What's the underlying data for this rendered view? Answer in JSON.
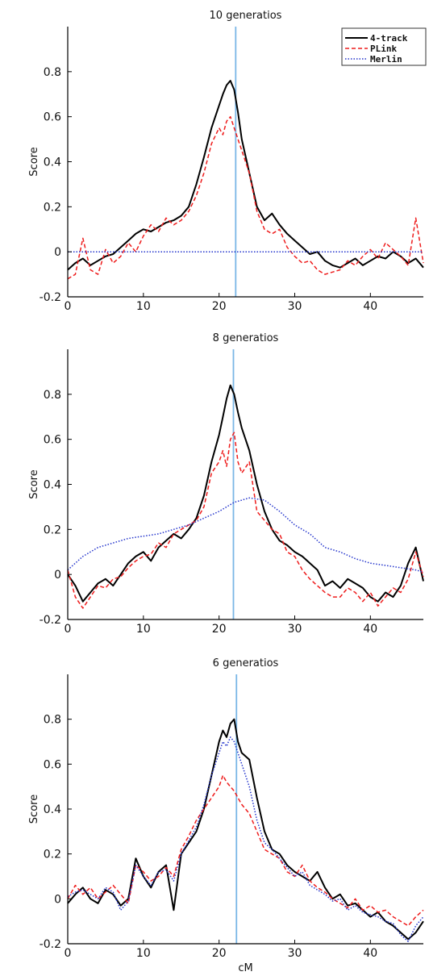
{
  "chart_data": [
    {
      "type": "line",
      "title": "10 generatios",
      "ylabel": "Score",
      "xlabel": "",
      "xlim": [
        0,
        47
      ],
      "ylim": [
        -0.2,
        1.0
      ],
      "xticks": [
        0,
        10,
        20,
        30,
        40
      ],
      "yticks": [
        -0.2,
        0,
        0.2,
        0.4,
        0.6,
        0.8
      ],
      "marker_x": 22.2,
      "legend": {
        "position": "top-right",
        "entries": [
          "4-track",
          "PLink",
          "Merlin"
        ]
      },
      "series": [
        {
          "name": "4-track",
          "color": "#000000",
          "style": "solid",
          "x": [
            0,
            1,
            2,
            3,
            4,
            5,
            6,
            7,
            8,
            9,
            10,
            11,
            12,
            13,
            14,
            15,
            16,
            17,
            18,
            19,
            20,
            20.5,
            21,
            21.5,
            22,
            22.5,
            23,
            24,
            25,
            26,
            27,
            28,
            29,
            30,
            31,
            32,
            33,
            34,
            35,
            36,
            37,
            38,
            39,
            40,
            41,
            42,
            43,
            44,
            45,
            46,
            47
          ],
          "y": [
            -0.08,
            -0.05,
            -0.03,
            -0.06,
            -0.04,
            -0.02,
            -0.01,
            0.02,
            0.05,
            0.08,
            0.1,
            0.09,
            0.11,
            0.13,
            0.14,
            0.16,
            0.2,
            0.3,
            0.42,
            0.55,
            0.65,
            0.7,
            0.74,
            0.76,
            0.72,
            0.62,
            0.5,
            0.35,
            0.2,
            0.14,
            0.17,
            0.12,
            0.08,
            0.05,
            0.02,
            -0.01,
            0.0,
            -0.04,
            -0.06,
            -0.07,
            -0.05,
            -0.03,
            -0.06,
            -0.04,
            -0.02,
            -0.03,
            0.0,
            -0.02,
            -0.05,
            -0.03,
            -0.07
          ]
        },
        {
          "name": "PLink",
          "color": "#ee1c1c",
          "style": "dashed",
          "x": [
            0,
            1,
            2,
            3,
            4,
            5,
            6,
            7,
            8,
            9,
            10,
            11,
            12,
            13,
            14,
            15,
            16,
            17,
            18,
            19,
            20,
            20.5,
            21,
            21.5,
            22,
            22.5,
            23,
            24,
            25,
            26,
            27,
            28,
            29,
            30,
            31,
            32,
            33,
            34,
            35,
            36,
            37,
            38,
            39,
            40,
            41,
            42,
            43,
            44,
            45,
            46,
            47
          ],
          "y": [
            -0.12,
            -0.1,
            0.06,
            -0.08,
            -0.1,
            0.01,
            -0.05,
            -0.02,
            0.04,
            0.0,
            0.07,
            0.12,
            0.09,
            0.15,
            0.12,
            0.14,
            0.18,
            0.25,
            0.35,
            0.48,
            0.55,
            0.52,
            0.58,
            0.6,
            0.55,
            0.5,
            0.45,
            0.35,
            0.18,
            0.1,
            0.08,
            0.1,
            0.02,
            -0.02,
            -0.05,
            -0.04,
            -0.08,
            -0.1,
            -0.09,
            -0.08,
            -0.04,
            -0.06,
            -0.02,
            0.01,
            -0.03,
            0.04,
            0.01,
            -0.02,
            -0.06,
            0.15,
            -0.05
          ]
        },
        {
          "name": "Merlin",
          "color": "#2233cc",
          "style": "dotted",
          "x": [
            0,
            2,
            5,
            9,
            12,
            17,
            20,
            25,
            30,
            35,
            40,
            44,
            47
          ],
          "y": [
            0.0,
            0.0,
            0.0,
            0.0,
            0.0,
            0.0,
            0.0,
            0.0,
            0.0,
            0.0,
            0.0,
            0.0,
            0.0
          ]
        }
      ]
    },
    {
      "type": "line",
      "title": "8 generatios",
      "ylabel": "Score",
      "xlabel": "",
      "xlim": [
        0,
        47
      ],
      "ylim": [
        -0.2,
        1.0
      ],
      "xticks": [
        0,
        10,
        20,
        30,
        40
      ],
      "yticks": [
        -0.2,
        0,
        0.2,
        0.4,
        0.6,
        0.8
      ],
      "marker_x": 21.9,
      "legend": null,
      "series": [
        {
          "name": "4-track",
          "color": "#000000",
          "style": "solid",
          "x": [
            0,
            1,
            2,
            3,
            4,
            5,
            6,
            7,
            8,
            9,
            10,
            11,
            12,
            13,
            14,
            15,
            16,
            17,
            18,
            19,
            20,
            20.5,
            21,
            21.5,
            22,
            22.5,
            23,
            24,
            25,
            26,
            27,
            28,
            29,
            30,
            31,
            32,
            33,
            34,
            35,
            36,
            37,
            38,
            39,
            40,
            41,
            42,
            43,
            44,
            45,
            46,
            47
          ],
          "y": [
            0.0,
            -0.05,
            -0.12,
            -0.08,
            -0.04,
            -0.02,
            -0.05,
            0.0,
            0.05,
            0.08,
            0.1,
            0.06,
            0.12,
            0.15,
            0.18,
            0.16,
            0.2,
            0.25,
            0.35,
            0.5,
            0.62,
            0.7,
            0.78,
            0.84,
            0.8,
            0.72,
            0.65,
            0.55,
            0.4,
            0.28,
            0.2,
            0.15,
            0.13,
            0.1,
            0.08,
            0.05,
            0.02,
            -0.05,
            -0.03,
            -0.06,
            -0.02,
            -0.04,
            -0.06,
            -0.1,
            -0.12,
            -0.08,
            -0.1,
            -0.05,
            0.05,
            0.12,
            -0.03
          ]
        },
        {
          "name": "PLink",
          "color": "#ee1c1c",
          "style": "dashed",
          "x": [
            0,
            1,
            2,
            3,
            4,
            5,
            6,
            7,
            8,
            9,
            10,
            11,
            12,
            13,
            14,
            15,
            16,
            17,
            18,
            19,
            20,
            20.5,
            21,
            21.5,
            22,
            22.5,
            23,
            24,
            25,
            26,
            27,
            28,
            29,
            30,
            31,
            32,
            33,
            34,
            35,
            36,
            37,
            38,
            39,
            40,
            41,
            42,
            43,
            44,
            45,
            46,
            47
          ],
          "y": [
            0.02,
            -0.1,
            -0.15,
            -0.1,
            -0.05,
            -0.06,
            -0.02,
            -0.01,
            0.03,
            0.06,
            0.08,
            0.09,
            0.14,
            0.12,
            0.18,
            0.2,
            0.22,
            0.24,
            0.3,
            0.45,
            0.5,
            0.55,
            0.48,
            0.6,
            0.63,
            0.5,
            0.45,
            0.5,
            0.28,
            0.24,
            0.2,
            0.18,
            0.1,
            0.08,
            0.02,
            -0.02,
            -0.05,
            -0.08,
            -0.1,
            -0.1,
            -0.06,
            -0.08,
            -0.12,
            -0.08,
            -0.14,
            -0.1,
            -0.06,
            -0.08,
            -0.02,
            0.1,
            -0.01
          ]
        },
        {
          "name": "Merlin",
          "color": "#2233cc",
          "style": "dotted",
          "x": [
            0,
            2,
            4,
            6,
            8,
            10,
            12,
            14,
            16,
            18,
            20,
            22,
            24,
            26,
            28,
            30,
            32,
            34,
            36,
            38,
            40,
            42,
            44,
            46,
            47
          ],
          "y": [
            0.02,
            0.08,
            0.12,
            0.14,
            0.16,
            0.17,
            0.18,
            0.2,
            0.22,
            0.25,
            0.28,
            0.32,
            0.34,
            0.33,
            0.28,
            0.22,
            0.18,
            0.12,
            0.1,
            0.07,
            0.05,
            0.04,
            0.03,
            0.02,
            0.01
          ]
        }
      ]
    },
    {
      "type": "line",
      "title": "6 generatios",
      "ylabel": "Score",
      "xlabel": "cM",
      "xlim": [
        0,
        47
      ],
      "ylim": [
        -0.2,
        1.0
      ],
      "xticks": [
        0,
        10,
        20,
        30,
        40
      ],
      "yticks": [
        -0.2,
        0,
        0.2,
        0.4,
        0.6,
        0.8
      ],
      "marker_x": 22.3,
      "legend": null,
      "series": [
        {
          "name": "4-track",
          "color": "#000000",
          "style": "solid",
          "x": [
            0,
            1,
            2,
            3,
            4,
            5,
            6,
            7,
            8,
            9,
            10,
            11,
            12,
            13,
            14,
            15,
            16,
            17,
            18,
            19,
            20,
            20.5,
            21,
            21.5,
            22,
            22.5,
            23,
            24,
            25,
            26,
            27,
            28,
            29,
            30,
            31,
            32,
            33,
            34,
            35,
            36,
            37,
            38,
            39,
            40,
            41,
            42,
            43,
            44,
            45,
            46,
            47
          ],
          "y": [
            -0.02,
            0.02,
            0.05,
            0.0,
            -0.02,
            0.04,
            0.02,
            -0.03,
            0.0,
            0.18,
            0.1,
            0.05,
            0.12,
            0.15,
            -0.05,
            0.2,
            0.25,
            0.3,
            0.4,
            0.55,
            0.7,
            0.75,
            0.72,
            0.78,
            0.8,
            0.7,
            0.65,
            0.62,
            0.45,
            0.3,
            0.22,
            0.2,
            0.15,
            0.12,
            0.1,
            0.08,
            0.12,
            0.05,
            0.0,
            0.02,
            -0.03,
            -0.02,
            -0.05,
            -0.08,
            -0.06,
            -0.1,
            -0.12,
            -0.15,
            -0.18,
            -0.15,
            -0.1
          ]
        },
        {
          "name": "PLink",
          "color": "#ee1c1c",
          "style": "dashed",
          "x": [
            0,
            1,
            2,
            3,
            4,
            5,
            6,
            7,
            8,
            9,
            10,
            11,
            12,
            13,
            14,
            15,
            16,
            17,
            18,
            19,
            20,
            20.5,
            21,
            21.5,
            22,
            22.5,
            23,
            24,
            25,
            26,
            27,
            28,
            29,
            30,
            31,
            32,
            33,
            34,
            35,
            36,
            37,
            38,
            39,
            40,
            41,
            42,
            43,
            44,
            45,
            46,
            47
          ],
          "y": [
            0.0,
            0.06,
            0.02,
            0.05,
            0.0,
            0.03,
            0.06,
            0.02,
            -0.02,
            0.15,
            0.12,
            0.08,
            0.1,
            0.14,
            0.1,
            0.22,
            0.28,
            0.35,
            0.4,
            0.45,
            0.5,
            0.55,
            0.52,
            0.5,
            0.48,
            0.45,
            0.42,
            0.38,
            0.3,
            0.22,
            0.2,
            0.18,
            0.12,
            0.1,
            0.15,
            0.08,
            0.05,
            0.03,
            0.0,
            -0.02,
            -0.04,
            0.0,
            -0.05,
            -0.03,
            -0.06,
            -0.05,
            -0.08,
            -0.1,
            -0.12,
            -0.08,
            -0.05
          ]
        },
        {
          "name": "Merlin",
          "color": "#2233cc",
          "style": "dotted",
          "x": [
            0,
            1,
            2,
            3,
            4,
            5,
            6,
            7,
            8,
            9,
            10,
            11,
            12,
            13,
            14,
            15,
            16,
            17,
            18,
            19,
            20,
            20.5,
            21,
            21.5,
            22,
            22.5,
            23,
            24,
            25,
            26,
            27,
            28,
            29,
            30,
            31,
            32,
            33,
            34,
            35,
            36,
            37,
            38,
            39,
            40,
            41,
            42,
            43,
            44,
            45,
            46,
            47
          ],
          "y": [
            0.01,
            0.03,
            0.04,
            0.02,
            0.0,
            0.05,
            0.03,
            -0.05,
            -0.01,
            0.15,
            0.1,
            0.06,
            0.12,
            0.13,
            0.08,
            0.2,
            0.26,
            0.32,
            0.42,
            0.55,
            0.65,
            0.7,
            0.68,
            0.72,
            0.7,
            0.65,
            0.6,
            0.5,
            0.35,
            0.25,
            0.22,
            0.18,
            0.14,
            0.1,
            0.12,
            0.06,
            0.04,
            0.02,
            -0.01,
            0.0,
            -0.05,
            -0.03,
            -0.06,
            -0.07,
            -0.08,
            -0.1,
            -0.11,
            -0.16,
            -0.19,
            -0.12,
            -0.08
          ]
        }
      ]
    }
  ]
}
